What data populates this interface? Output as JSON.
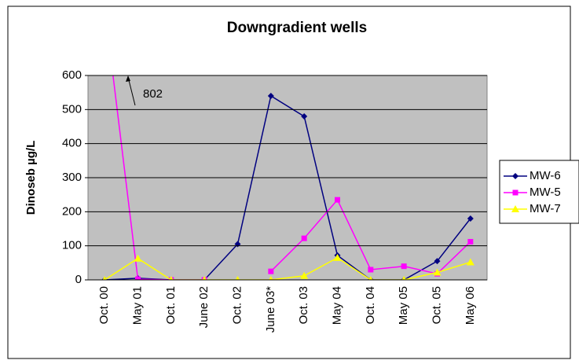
{
  "chart_data": {
    "type": "line",
    "title": "Downgradient wells",
    "ylabel": "Dinoseb µg/L",
    "categories": [
      "Oct. 00",
      "May 01",
      "Oct. 01",
      "June 02",
      "Oct. 02",
      "June 03*",
      "Oct. 03",
      "May 04",
      "Oct. 04",
      "May 05",
      "Oct. 05",
      "May 06"
    ],
    "series": [
      {
        "name": "MW-6",
        "color": "#000080",
        "marker": "diamond",
        "values": [
          0,
          5,
          0,
          0,
          105,
          540,
          480,
          72,
          0,
          0,
          55,
          180
        ]
      },
      {
        "name": "MW-5",
        "color": "#ff00ff",
        "marker": "square",
        "values": [
          802,
          2,
          0,
          0,
          null,
          25,
          122,
          235,
          30,
          40,
          18,
          112
        ]
      },
      {
        "name": "MW-7",
        "color": "#ffff00",
        "marker": "triangle",
        "values": [
          0,
          63,
          0,
          0,
          0,
          0,
          12,
          65,
          0,
          0,
          22,
          52
        ]
      }
    ],
    "annotation": "802",
    "ylim": [
      0,
      600
    ],
    "yticks": [
      0,
      100,
      200,
      300,
      400,
      500,
      600
    ],
    "grid": true,
    "legend": "right"
  }
}
